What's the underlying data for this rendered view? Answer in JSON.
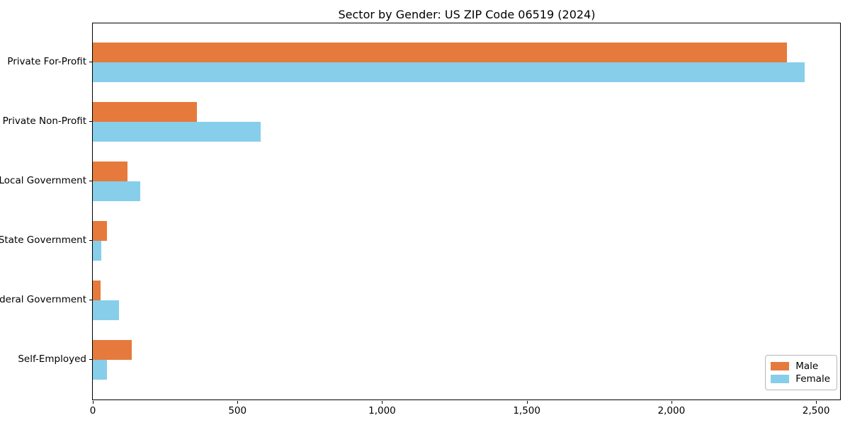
{
  "chart_data": {
    "type": "bar",
    "orientation": "horizontal",
    "title": "Sector by Gender: US ZIP Code 06519 (2024)",
    "xlabel": "",
    "ylabel": "",
    "categories": [
      "Private For-Profit",
      "Private Non-Profit",
      "Local Government",
      "State Government",
      "Federal Government",
      "Self-Employed"
    ],
    "series": [
      {
        "name": "Male",
        "color": "#e67a3c",
        "values": [
          2400,
          360,
          120,
          50,
          28,
          135
        ]
      },
      {
        "name": "Female",
        "color": "#87ceeb",
        "values": [
          2460,
          580,
          165,
          30,
          90,
          48
        ]
      }
    ],
    "xlim": [
      0,
      2583
    ],
    "x_ticks": [
      0,
      500,
      1000,
      1500,
      2000,
      2500
    ],
    "x_tick_labels": [
      "0",
      "500",
      "1,000",
      "1,500",
      "2,000",
      "2,500"
    ],
    "grid": false,
    "legend_position": "lower right"
  }
}
